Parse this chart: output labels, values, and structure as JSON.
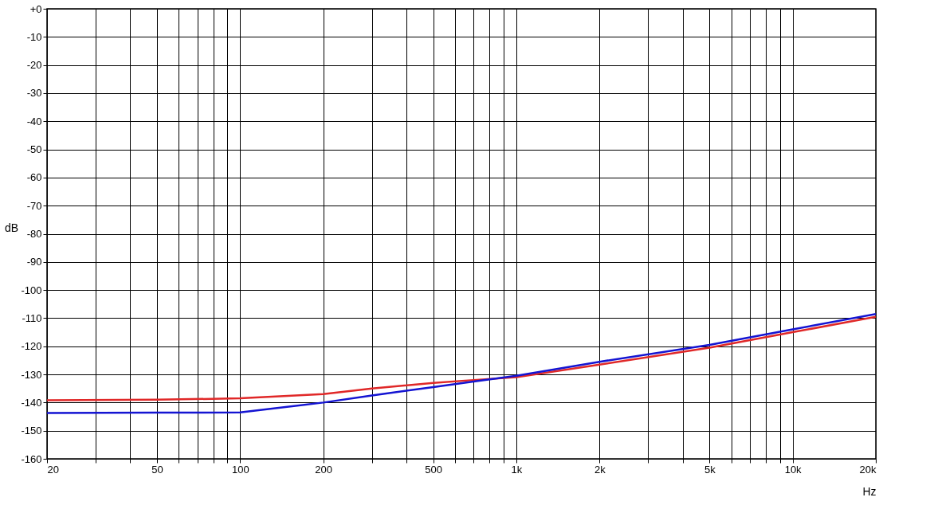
{
  "chart_data": {
    "type": "line",
    "xlabel": "Hz",
    "ylabel": "dB",
    "log": "x",
    "grid": true,
    "legend": false,
    "marker": "none",
    "line_style": "solid",
    "xlim": [
      20,
      20000
    ],
    "ylim": [
      -160,
      0
    ],
    "xticks": [
      20,
      {
        "value": 30,
        "label": null
      },
      {
        "value": 40,
        "label": null
      },
      50,
      {
        "value": 60,
        "label": null
      },
      {
        "value": 70,
        "label": null
      },
      {
        "value": 80,
        "label": null
      },
      {
        "value": 90,
        "label": null
      },
      100,
      200,
      {
        "value": 300,
        "label": null
      },
      {
        "value": 400,
        "label": null
      },
      500,
      {
        "value": 600,
        "label": null
      },
      {
        "value": 700,
        "label": null
      },
      {
        "value": 800,
        "label": null
      },
      {
        "value": 900,
        "label": null
      },
      {
        "value": 1000,
        "label": "1k"
      },
      {
        "value": 2000,
        "label": "2k"
      },
      {
        "value": 3000,
        "label": null
      },
      {
        "value": 4000,
        "label": null
      },
      {
        "value": 5000,
        "label": "5k"
      },
      {
        "value": 6000,
        "label": null
      },
      {
        "value": 7000,
        "label": null
      },
      {
        "value": 8000,
        "label": null
      },
      {
        "value": 9000,
        "label": null
      },
      {
        "value": 10000,
        "label": "10k"
      },
      {
        "value": 20000,
        "label": "20k"
      }
    ],
    "yticks": [
      {
        "value": 0,
        "label": "+0"
      },
      -10,
      -20,
      -30,
      -40,
      -50,
      -60,
      -70,
      -80,
      -90,
      -100,
      -110,
      -120,
      -130,
      -140,
      -150,
      -160
    ],
    "x": [
      20,
      50,
      100,
      200,
      300,
      500,
      700,
      1000,
      2000,
      5000,
      10000,
      20000
    ],
    "series": [
      {
        "color": "#e02828",
        "values": [
          -139.2,
          -139,
          -138.5,
          -137,
          -135,
          -133,
          -132,
          -131,
          -126.5,
          -120.5,
          -115,
          -109.5
        ]
      },
      {
        "color": "#1414d2",
        "values": [
          -143.7,
          -143.6,
          -143.5,
          -140,
          -137.5,
          -134.5,
          -132.5,
          -130.5,
          -125.5,
          -119.5,
          -114,
          -108.5
        ]
      }
    ]
  }
}
